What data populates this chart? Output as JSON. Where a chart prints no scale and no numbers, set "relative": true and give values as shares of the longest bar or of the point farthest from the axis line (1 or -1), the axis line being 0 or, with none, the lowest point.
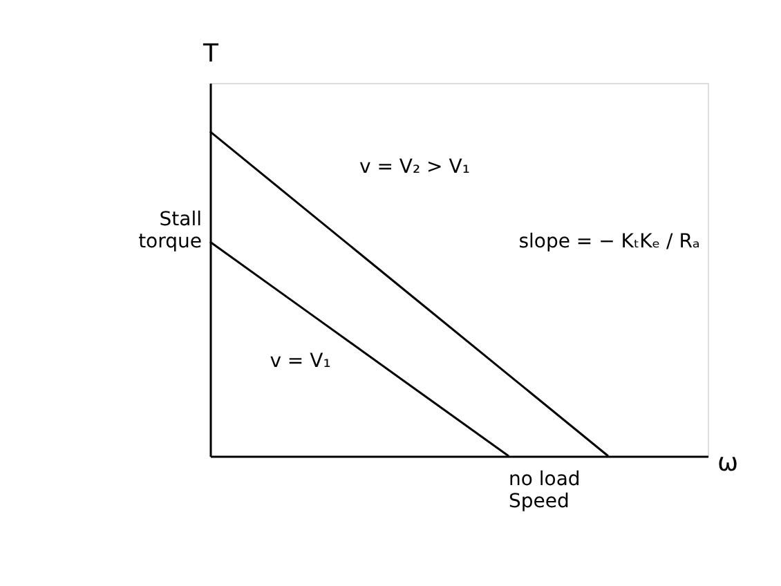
{
  "chart_data": {
    "type": "line",
    "relative": true,
    "xlabel": "ω",
    "ylabel": "T",
    "marker": "none",
    "line_style": "solid",
    "categories": [
      null,
      null,
      null,
      null,
      null
    ],
    "series": [
      {
        "color": "#000000",
        "values": [
          0.66,
          0.44,
          0.22,
          0,
          null
        ]
      },
      {
        "color": "#000000",
        "values": [
          1,
          0.75,
          0.5,
          0.25,
          0
        ]
      }
    ],
    "annotations": [
      "Stall torque",
      "v = V₂ > V₁",
      "v = V₁",
      "slope = − KₜKₑ / Rₐ",
      "no load Speed"
    ]
  }
}
